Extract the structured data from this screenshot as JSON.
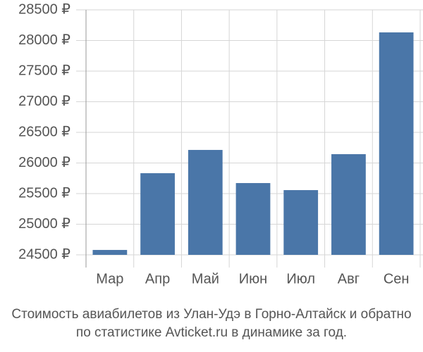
{
  "chart_data": {
    "type": "bar",
    "title": "Стоимость авиабилетов из Улан-Удэ в Горно-Алтайск и обратно",
    "subtitle": "по статистике Avticket.ru в динамике за год.",
    "categories": [
      "Мар",
      "Апр",
      "Май",
      "Июн",
      "Июл",
      "Авг",
      "Сен"
    ],
    "values": [
      24580,
      25833,
      26213,
      25672,
      25557,
      26144,
      28132
    ],
    "color": "#4a76a8",
    "ylim": [
      24500,
      28500
    ],
    "yticks": [
      {
        "value": 24500,
        "label": "24500 ₽"
      },
      {
        "value": 25000,
        "label": "25000 ₽"
      },
      {
        "value": 25500,
        "label": "25500 ₽"
      },
      {
        "value": 26000,
        "label": "26000 ₽"
      },
      {
        "value": 26500,
        "label": "26500 ₽"
      },
      {
        "value": 27000,
        "label": "27000 ₽"
      },
      {
        "value": 27500,
        "label": "27500 ₽"
      },
      {
        "value": 28000,
        "label": "28000 ₽"
      },
      {
        "value": 28500,
        "label": "28500 ₽"
      }
    ],
    "grid": true
  }
}
